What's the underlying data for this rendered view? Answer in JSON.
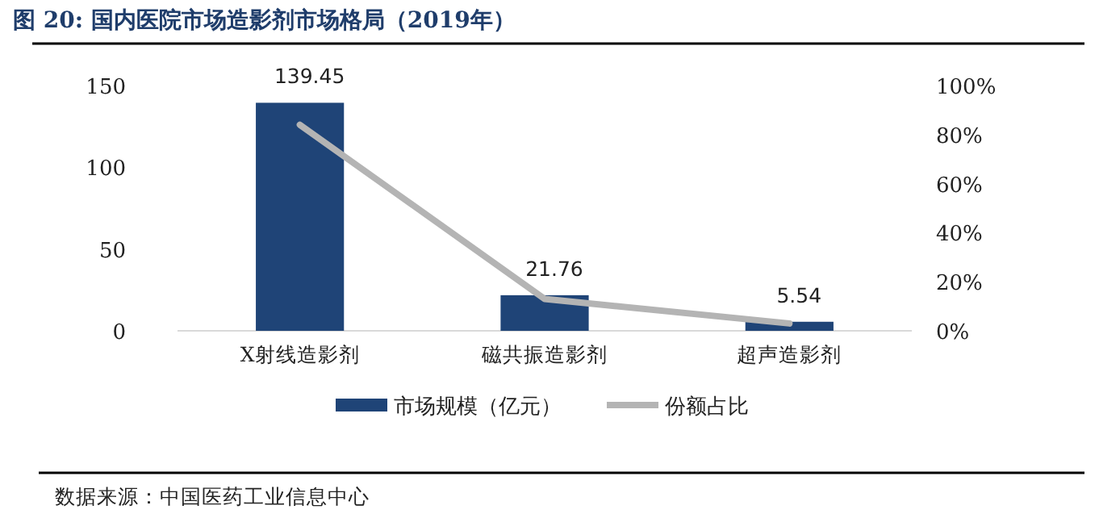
{
  "chart_data": {
    "type": "bar",
    "title": "图 20:  国内医院市场造影剂市场格局（2019年）",
    "categories": [
      "X射线造影剂",
      "磁共振造影剂",
      "超声造影剂"
    ],
    "series": [
      {
        "name": "市场规模（亿元）",
        "color": "#1f4477",
        "values": [
          139.45,
          21.76,
          5.54
        ],
        "value_labels": [
          "139.45",
          "21.76",
          "5.54"
        ]
      },
      {
        "name": "份额占比",
        "type": "line",
        "axis": "y2",
        "color": "#b4b4b4",
        "values": [
          84,
          13,
          3
        ]
      }
    ],
    "ylim": [
      0,
      150
    ],
    "yticks": [
      0,
      50,
      100,
      150
    ],
    "y2lim": [
      0,
      100
    ],
    "y2ticks": [
      {
        "value": 0,
        "label": "0%"
      },
      {
        "value": 20,
        "label": "20%"
      },
      {
        "value": 40,
        "label": "40%"
      },
      {
        "value": 60,
        "label": "60%"
      },
      {
        "value": 80,
        "label": "80%"
      },
      {
        "value": 100,
        "label": "100%"
      }
    ],
    "legend": "bottom",
    "marker": "none",
    "line_style": "solid",
    "annotations": [
      "数据来源：中国医药工业信息中心"
    ]
  }
}
